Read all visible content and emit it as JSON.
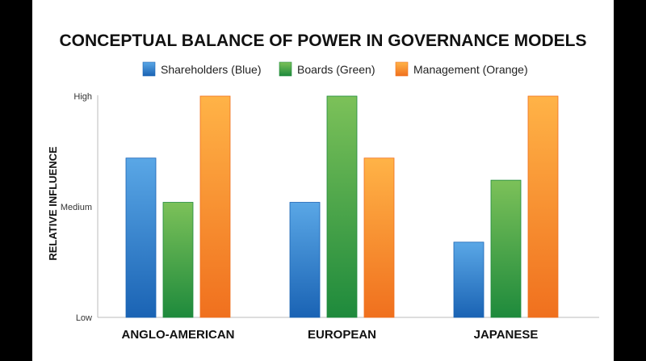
{
  "chart_data": {
    "type": "bar",
    "title": "CONCEPTUAL BALANCE OF POWER IN GOVERNANCE MODELS",
    "xlabel": "",
    "ylabel": "RELATIVE INFLUENCE",
    "categories": [
      "ANGLO-AMERICAN",
      "EUROPEAN",
      "JAPANESE"
    ],
    "y_tick_labels": [
      "Low",
      "Medium",
      "High"
    ],
    "ylim": [
      0,
      10
    ],
    "grid": false,
    "legend_position": "top",
    "series": [
      {
        "name": "Shareholders (Blue)",
        "values": [
          7.2,
          5.2,
          3.4
        ],
        "color_top": "#5aa7e6",
        "color_bottom": "#1a63b4"
      },
      {
        "name": "Boards (Green)",
        "values": [
          5.2,
          10,
          6.2
        ],
        "color_top": "#7cc159",
        "color_bottom": "#1e8a3c"
      },
      {
        "name": "Management (Orange)",
        "values": [
          10,
          7.2,
          10
        ],
        "color_top": "#ffb347",
        "color_bottom": "#f0701e"
      }
    ]
  }
}
